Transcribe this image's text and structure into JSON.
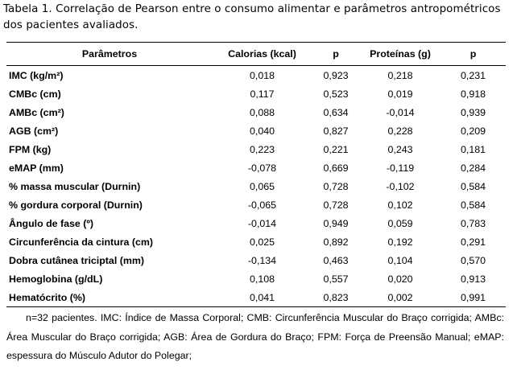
{
  "caption": "Tabela 1. Correlação de Pearson entre o consumo alimentar e parâmetros antropométricos dos pacientes avaliados.",
  "table": {
    "headers": [
      "Parâmetros",
      "Calorias (kcal)",
      "p",
      "Proteínas (g)",
      "p"
    ],
    "rows": [
      {
        "param": "IMC (kg/m²)",
        "cal": "0,018",
        "p1": "0,923",
        "prot": "0,218",
        "p2": "0,231"
      },
      {
        "param": "CMBc (cm)",
        "cal": "0,117",
        "p1": "0,523",
        "prot": "0,019",
        "p2": "0,918"
      },
      {
        "param": "AMBc (cm²)",
        "cal": "0,088",
        "p1": "0,634",
        "prot": "-0,014",
        "p2": "0,939"
      },
      {
        "param": "AGB (cm²)",
        "cal": "0,040",
        "p1": "0,827",
        "prot": "0,228",
        "p2": "0,209"
      },
      {
        "param": "FPM (kg)",
        "cal": "0,223",
        "p1": "0,221",
        "prot": "0,243",
        "p2": "0,181"
      },
      {
        "param": "eMAP (mm)",
        "cal": "-0,078",
        "p1": "0,669",
        "prot": "-0,119",
        "p2": "0,284"
      },
      {
        "param": "% massa muscular (Durnin)",
        "cal": "0,065",
        "p1": "0,728",
        "prot": "-0,102",
        "p2": "0,584"
      },
      {
        "param": "% gordura corporal (Durnin)",
        "cal": "-0,065",
        "p1": "0,728",
        "prot": "0,102",
        "p2": "0,584"
      },
      {
        "param": "Ângulo de fase (º)",
        "cal": "-0,014",
        "p1": "0,949",
        "prot": "0,059",
        "p2": "0,783"
      },
      {
        "param": "Circunferência da cintura (cm)",
        "cal": "0,025",
        "p1": "0,892",
        "prot": "0,192",
        "p2": "0,291"
      },
      {
        "param": "Dobra cutânea triciptal (mm)",
        "cal": "-0,134",
        "p1": "0,463",
        "prot": "0,104",
        "p2": "0,570"
      },
      {
        "param": "Hemoglobina (g/dL)",
        "cal": "0,108",
        "p1": "0,557",
        "prot": "0,020",
        "p2": "0,913"
      },
      {
        "param": "Hematócrito (%)",
        "cal": "0,041",
        "p1": "0,823",
        "prot": "0,002",
        "p2": "0,991"
      }
    ]
  },
  "footnote": "n=32 pacientes. IMC: Índice de Massa Corporal; CMB: Circunferência Muscular do Braço corrigida; AMBc: Área Muscular do Braço corrigida; AGB: Área de Gordura do Braço; FPM: Força de Preensão Manual; eMAP: espessura do Músculo Adutor do Polegar;"
}
